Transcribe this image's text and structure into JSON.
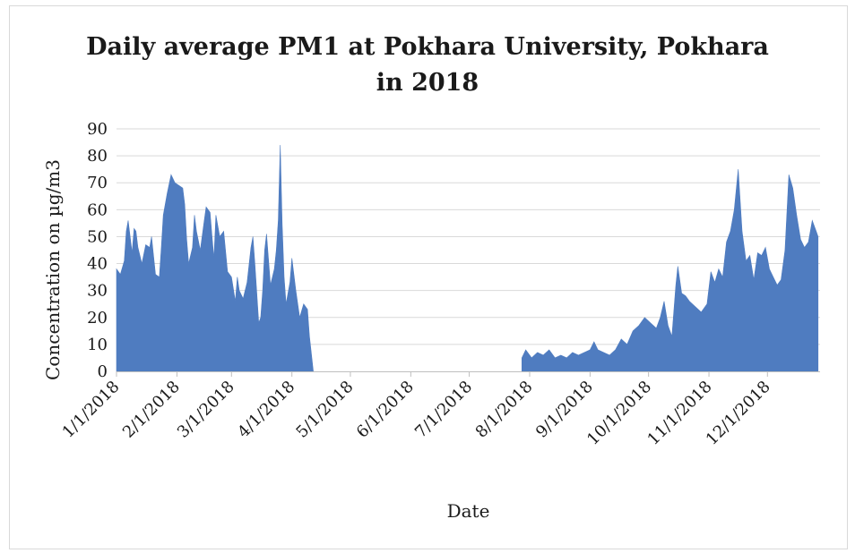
{
  "chart_data": {
    "type": "area",
    "title_line1": "Daily average PM1 at Pokhara University, Pokhara",
    "title_line2": "in 2018",
    "xlabel": "Date",
    "ylabel": "Concentration on µg/m3",
    "ylim": [
      0,
      90
    ],
    "yticks": [
      0,
      10,
      20,
      30,
      40,
      50,
      60,
      70,
      80,
      90
    ],
    "xticks": [
      "1/1/2018",
      "2/1/2018",
      "3/1/2018",
      "4/1/2018",
      "5/1/2018",
      "6/1/2018",
      "7/1/2018",
      "8/1/2018",
      "9/1/2018",
      "10/1/2018",
      "11/1/2018",
      "12/1/2018"
    ],
    "grid": true,
    "color": "#4f7cc0",
    "series": [
      {
        "values": [
          [
            "2018-01-01",
            0
          ],
          [
            "2018-01-01",
            38
          ],
          [
            "2018-01-03",
            36
          ],
          [
            "2018-01-05",
            41
          ],
          [
            "2018-01-06",
            52
          ],
          [
            "2018-01-07",
            56
          ],
          [
            "2018-01-09",
            44
          ],
          [
            "2018-01-10",
            53
          ],
          [
            "2018-01-11",
            52
          ],
          [
            "2018-01-12",
            46
          ],
          [
            "2018-01-14",
            40
          ],
          [
            "2018-01-16",
            47
          ],
          [
            "2018-01-18",
            46
          ],
          [
            "2018-01-19",
            50
          ],
          [
            "2018-01-21",
            36
          ],
          [
            "2018-01-23",
            35
          ],
          [
            "2018-01-24",
            46
          ],
          [
            "2018-01-25",
            58
          ],
          [
            "2018-01-27",
            66
          ],
          [
            "2018-01-29",
            73
          ],
          [
            "2018-01-31",
            70
          ],
          [
            "2018-02-02",
            69
          ],
          [
            "2018-02-04",
            68
          ],
          [
            "2018-02-05",
            62
          ],
          [
            "2018-02-06",
            49
          ],
          [
            "2018-02-07",
            40
          ],
          [
            "2018-02-09",
            46
          ],
          [
            "2018-02-10",
            58
          ],
          [
            "2018-02-11",
            52
          ],
          [
            "2018-02-13",
            45
          ],
          [
            "2018-02-15",
            56
          ],
          [
            "2018-02-16",
            61
          ],
          [
            "2018-02-18",
            59
          ],
          [
            "2018-02-19",
            50
          ],
          [
            "2018-02-20",
            42
          ],
          [
            "2018-02-21",
            58
          ],
          [
            "2018-02-23",
            50
          ],
          [
            "2018-02-25",
            52
          ],
          [
            "2018-02-27",
            37
          ],
          [
            "2018-03-01",
            35
          ],
          [
            "2018-03-03",
            26
          ],
          [
            "2018-03-04",
            35
          ],
          [
            "2018-03-05",
            30
          ],
          [
            "2018-03-07",
            27
          ],
          [
            "2018-03-09",
            33
          ],
          [
            "2018-03-11",
            46
          ],
          [
            "2018-03-12",
            50
          ],
          [
            "2018-03-13",
            40
          ],
          [
            "2018-03-15",
            18
          ],
          [
            "2018-03-16",
            20
          ],
          [
            "2018-03-17",
            30
          ],
          [
            "2018-03-18",
            45
          ],
          [
            "2018-03-19",
            51
          ],
          [
            "2018-03-21",
            32
          ],
          [
            "2018-03-23",
            38
          ],
          [
            "2018-03-24",
            45
          ],
          [
            "2018-03-25",
            56
          ],
          [
            "2018-03-26",
            84
          ],
          [
            "2018-03-27",
            55
          ],
          [
            "2018-03-28",
            35
          ],
          [
            "2018-03-29",
            25
          ],
          [
            "2018-03-31",
            33
          ],
          [
            "2018-04-01",
            42
          ],
          [
            "2018-04-03",
            30
          ],
          [
            "2018-04-05",
            20
          ],
          [
            "2018-04-07",
            25
          ],
          [
            "2018-04-09",
            23
          ],
          [
            "2018-04-10",
            13
          ],
          [
            "2018-04-12",
            0
          ]
        ]
      },
      {
        "values": [
          [
            "2018-07-28",
            0
          ],
          [
            "2018-07-28",
            5
          ],
          [
            "2018-07-30",
            8
          ],
          [
            "2018-08-02",
            5
          ],
          [
            "2018-08-05",
            7
          ],
          [
            "2018-08-08",
            6
          ],
          [
            "2018-08-11",
            8
          ],
          [
            "2018-08-14",
            5
          ],
          [
            "2018-08-17",
            6
          ],
          [
            "2018-08-20",
            5
          ],
          [
            "2018-08-23",
            7
          ],
          [
            "2018-08-26",
            6
          ],
          [
            "2018-08-29",
            7
          ],
          [
            "2018-09-01",
            8
          ],
          [
            "2018-09-03",
            11
          ],
          [
            "2018-09-05",
            8
          ],
          [
            "2018-09-08",
            7
          ],
          [
            "2018-09-11",
            6
          ],
          [
            "2018-09-14",
            8
          ],
          [
            "2018-09-17",
            12
          ],
          [
            "2018-09-20",
            10
          ],
          [
            "2018-09-23",
            15
          ],
          [
            "2018-09-26",
            17
          ],
          [
            "2018-09-29",
            20
          ],
          [
            "2018-10-02",
            18
          ],
          [
            "2018-10-05",
            16
          ],
          [
            "2018-10-07",
            20
          ],
          [
            "2018-10-09",
            26
          ],
          [
            "2018-10-11",
            17
          ],
          [
            "2018-10-13",
            13
          ],
          [
            "2018-10-15",
            32
          ],
          [
            "2018-10-16",
            39
          ],
          [
            "2018-10-18",
            29
          ],
          [
            "2018-10-20",
            28
          ],
          [
            "2018-10-22",
            26
          ],
          [
            "2018-10-25",
            24
          ],
          [
            "2018-10-28",
            22
          ],
          [
            "2018-10-31",
            25
          ],
          [
            "2018-11-02",
            37
          ],
          [
            "2018-11-04",
            33
          ],
          [
            "2018-11-06",
            38
          ],
          [
            "2018-11-08",
            35
          ],
          [
            "2018-11-10",
            48
          ],
          [
            "2018-11-12",
            52
          ],
          [
            "2018-11-14",
            60
          ],
          [
            "2018-11-16",
            75
          ],
          [
            "2018-11-18",
            52
          ],
          [
            "2018-11-20",
            41
          ],
          [
            "2018-11-22",
            43
          ],
          [
            "2018-11-24",
            34
          ],
          [
            "2018-11-26",
            44
          ],
          [
            "2018-11-28",
            43
          ],
          [
            "2018-11-30",
            46
          ],
          [
            "2018-12-02",
            38
          ],
          [
            "2018-12-04",
            35
          ],
          [
            "2018-12-06",
            32
          ],
          [
            "2018-12-08",
            34
          ],
          [
            "2018-12-10",
            45
          ],
          [
            "2018-12-12",
            73
          ],
          [
            "2018-12-14",
            68
          ],
          [
            "2018-12-16",
            58
          ],
          [
            "2018-12-18",
            49
          ],
          [
            "2018-12-20",
            46
          ],
          [
            "2018-12-22",
            48
          ],
          [
            "2018-12-24",
            56
          ],
          [
            "2018-12-26",
            52
          ],
          [
            "2018-12-27",
            50
          ],
          [
            "2018-12-27",
            0
          ]
        ]
      }
    ]
  }
}
